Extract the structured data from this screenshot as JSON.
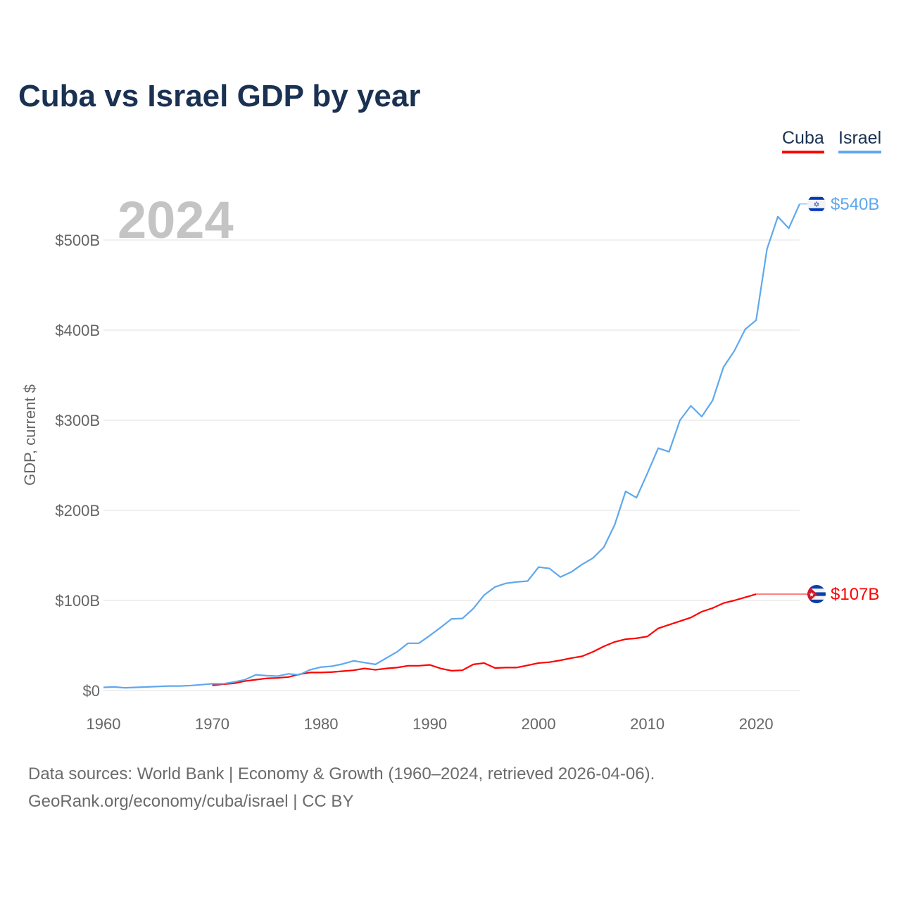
{
  "chart_data": {
    "type": "line",
    "title": "Cuba vs Israel GDP by year",
    "ylabel": "GDP, current $",
    "xlabel": "",
    "year_watermark": "2024",
    "xlim": [
      1960,
      2024
    ],
    "ylim": [
      0,
      540
    ],
    "grid": true,
    "legend_position": "top-right",
    "x_ticks": [
      1960,
      1970,
      1980,
      1990,
      2000,
      2010,
      2020
    ],
    "x_tick_labels": [
      "1960",
      "1970",
      "1980",
      "1990",
      "2000",
      "2010",
      "2020"
    ],
    "y_ticks": [
      0,
      100,
      200,
      300,
      400,
      500
    ],
    "y_tick_labels": [
      "$0",
      "$100B",
      "$200B",
      "$300B",
      "$400B",
      "$500B"
    ],
    "series": [
      {
        "name": "Cuba",
        "color": "#ff0000",
        "end_label": "$107B",
        "flag": "cuba-flag",
        "start_year": 1970,
        "values": [
          5.7,
          7,
          8,
          10.5,
          12,
          13.5,
          14,
          15,
          18,
          20,
          20,
          20.5,
          21.5,
          22.5,
          24.5,
          23,
          24.5,
          25.5,
          27.5,
          27.5,
          28.5,
          24.5,
          22,
          22.5,
          29,
          30.5,
          25,
          25.5,
          25.5,
          28,
          30.5,
          31.5,
          33.5,
          36,
          38,
          43,
          49,
          54,
          57,
          58,
          60,
          69,
          73,
          77,
          81,
          87.5,
          91.5,
          97,
          100,
          103.5,
          107
        ]
      },
      {
        "name": "Israel",
        "color": "#5fa8ec",
        "end_label": "$540B",
        "flag": "israel-flag",
        "start_year": 1960,
        "values": [
          3.5,
          4,
          3,
          3.5,
          4,
          4.5,
          5,
          5,
          5.5,
          6.5,
          7.5,
          7.5,
          9.5,
          12,
          17.5,
          16.5,
          16,
          18.5,
          17.5,
          23,
          26,
          27,
          29.5,
          33,
          31,
          29,
          36,
          43,
          52.5,
          52.5,
          61,
          70,
          79.5,
          80,
          91,
          106,
          115,
          119,
          120.5,
          121.5,
          137,
          135.5,
          126,
          131.5,
          140,
          147,
          159,
          184,
          221,
          214,
          241,
          269,
          265,
          300,
          316,
          304,
          322,
          359,
          377,
          401,
          411,
          490,
          526,
          513,
          540
        ]
      }
    ],
    "source_line1": "Data sources: World Bank | Economy & Growth (1960–2024, retrieved 2026-04-06).",
    "source_line2": "GeoRank.org/economy/cuba/israel | CC BY"
  }
}
